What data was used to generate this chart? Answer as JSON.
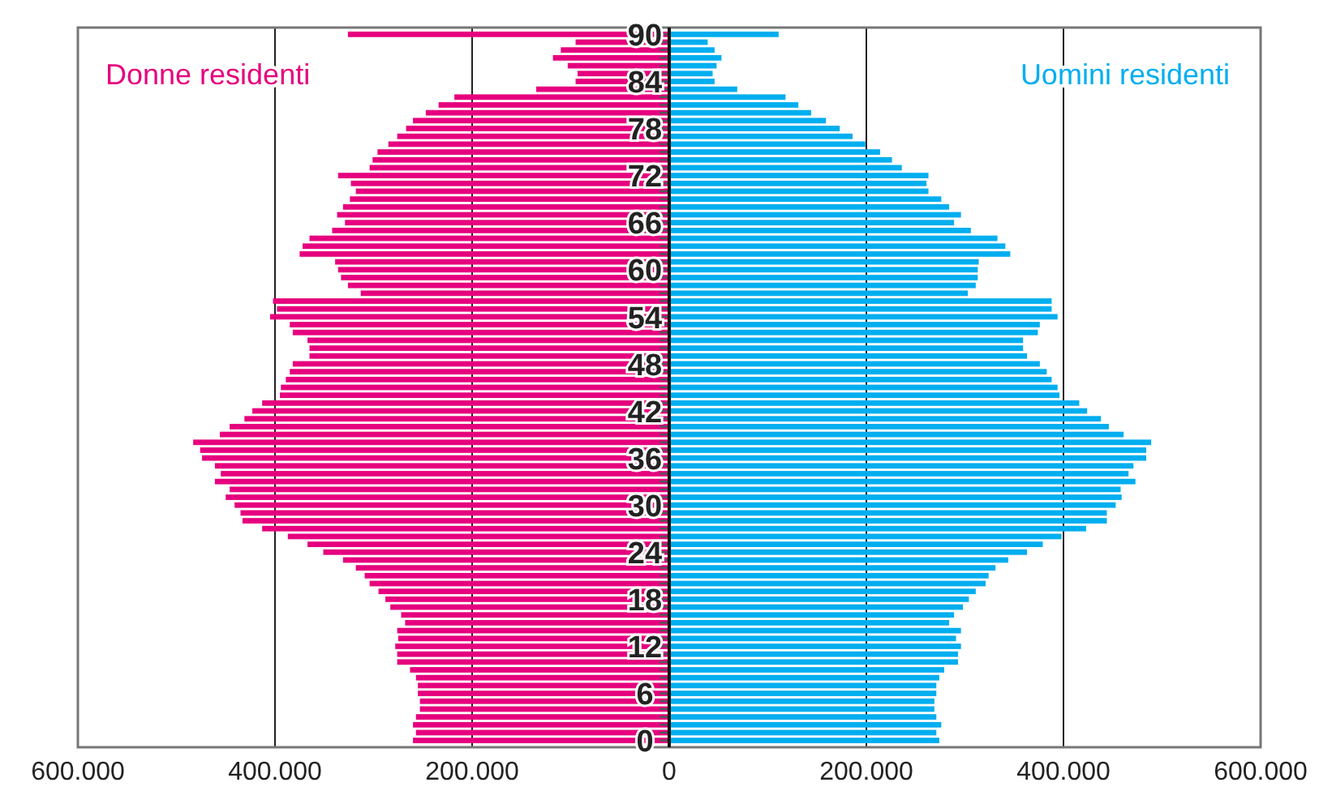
{
  "chart_data": {
    "type": "bar",
    "orientation": "horizontal",
    "categories": [
      "90",
      null,
      null,
      null,
      null,
      null,
      "84",
      null,
      null,
      null,
      null,
      null,
      "78",
      null,
      null,
      null,
      null,
      null,
      "72",
      null,
      null,
      null,
      null,
      null,
      "66",
      null,
      null,
      null,
      null,
      null,
      "60",
      null,
      null,
      null,
      null,
      null,
      "54",
      null,
      null,
      null,
      null,
      null,
      "48",
      null,
      null,
      null,
      null,
      null,
      "42",
      null,
      null,
      null,
      null,
      null,
      "36",
      null,
      null,
      null,
      null,
      null,
      "30",
      null,
      null,
      null,
      null,
      null,
      "24",
      null,
      null,
      null,
      null,
      null,
      "18",
      null,
      null,
      null,
      null,
      null,
      "12",
      null,
      null,
      null,
      null,
      null,
      "6",
      null,
      null,
      null,
      null,
      null,
      "0"
    ],
    "series": [
      {
        "name": "Donne residenti",
        "color": "#e6007e",
        "values": [
          -326000,
          -95000,
          -110000,
          -118000,
          -103000,
          -93000,
          -95000,
          -135000,
          -218000,
          -234000,
          -247000,
          -260000,
          -267000,
          -276000,
          -285000,
          -296000,
          -301000,
          -304000,
          -336000,
          -323000,
          -318000,
          -324000,
          -331000,
          -337000,
          -329000,
          -342000,
          -365000,
          -372000,
          -375000,
          -339000,
          -336000,
          -333000,
          -326000,
          -313000,
          -402000,
          -398000,
          -405000,
          -385000,
          -382000,
          -367000,
          -365000,
          -365000,
          -382000,
          -385000,
          -389000,
          -394000,
          -395000,
          -413000,
          -423000,
          -431000,
          -446000,
          -456000,
          -483000,
          -476000,
          -474000,
          -461000,
          -455000,
          -461000,
          -446000,
          -450000,
          -441000,
          -435000,
          -433000,
          -413000,
          -387000,
          -367000,
          -351000,
          -331000,
          -318000,
          -309000,
          -304000,
          -295000,
          -288000,
          -283000,
          -272000,
          -268000,
          -276000,
          -275000,
          -278000,
          -276000,
          -276000,
          -263000,
          -257000,
          -255000,
          -255000,
          -253000,
          -253000,
          -257000,
          -260000,
          -257000,
          -260000
        ]
      },
      {
        "name": "Uomini residenti",
        "color": "#00aeef",
        "values": [
          111000,
          39000,
          46000,
          53000,
          48000,
          44000,
          46000,
          69000,
          118000,
          131000,
          144000,
          159000,
          173000,
          186000,
          199000,
          214000,
          226000,
          236000,
          263000,
          261000,
          263000,
          276000,
          284000,
          296000,
          289000,
          306000,
          333000,
          341000,
          346000,
          314000,
          313000,
          313000,
          311000,
          303000,
          388000,
          388000,
          394000,
          376000,
          374000,
          359000,
          359000,
          363000,
          376000,
          383000,
          388000,
          394000,
          396000,
          416000,
          424000,
          438000,
          446000,
          461000,
          489000,
          484000,
          484000,
          471000,
          466000,
          473000,
          458000,
          459000,
          453000,
          444000,
          444000,
          423000,
          398000,
          379000,
          363000,
          344000,
          331000,
          324000,
          321000,
          311000,
          304000,
          298000,
          289000,
          284000,
          296000,
          291000,
          296000,
          293000,
          293000,
          279000,
          274000,
          271000,
          271000,
          269000,
          269000,
          271000,
          276000,
          271000,
          274000
        ]
      }
    ],
    "xlim": [
      -600000,
      600000
    ],
    "xticks": [
      {
        "value": -600000,
        "label": "600.000"
      },
      {
        "value": -400000,
        "label": "400.000"
      },
      {
        "value": -200000,
        "label": "200.000"
      },
      0,
      {
        "value": 200000,
        "label": "200.000"
      },
      {
        "value": 400000,
        "label": "400.000"
      },
      {
        "value": 600000,
        "label": "600.000"
      }
    ],
    "grid": "x",
    "stacked": true
  }
}
